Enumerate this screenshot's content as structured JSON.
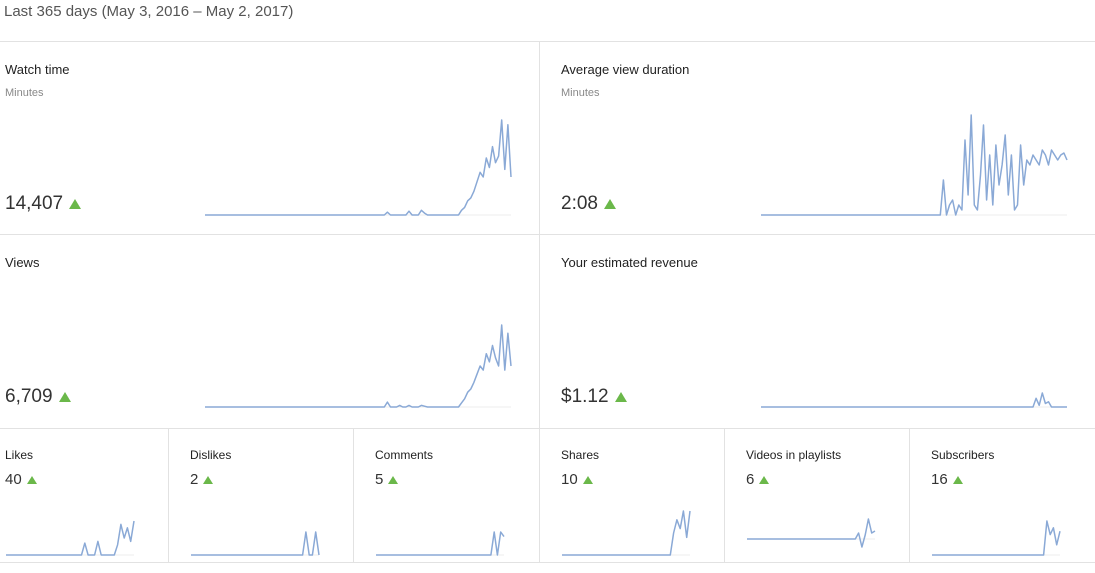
{
  "period_label": "Last 365 days (May 3, 2016 – May 2, 2017)",
  "accent_color": "#6bb84a",
  "line_color": "#8aa9d6",
  "metrics": {
    "watch_time": {
      "title": "Watch time",
      "subtitle": "Minutes",
      "value": "14,407",
      "trend": "up-arrow-icon",
      "chart_data": {
        "type": "line",
        "x_count": 100,
        "values": [
          0,
          0,
          0,
          0,
          0,
          0,
          0,
          0,
          0,
          0,
          0,
          0,
          0,
          0,
          0,
          0,
          0,
          0,
          0,
          0,
          0,
          0,
          0,
          0,
          0,
          0,
          0,
          0,
          0,
          0,
          0,
          0,
          0,
          0,
          0,
          0,
          0,
          0,
          0,
          0,
          0,
          0,
          0,
          0,
          0,
          0,
          0,
          0,
          0,
          0,
          0,
          0,
          0,
          0,
          0,
          0,
          0,
          0,
          0,
          0.03,
          0,
          0,
          0,
          0,
          0,
          0,
          0.04,
          0,
          0,
          0,
          0.05,
          0.02,
          0,
          0,
          0,
          0,
          0,
          0,
          0,
          0,
          0,
          0,
          0,
          0.05,
          0.08,
          0.15,
          0.18,
          0.25,
          0.35,
          0.45,
          0.4,
          0.6,
          0.5,
          0.72,
          0.55,
          0.62,
          1.0,
          0.48,
          0.95,
          0.4
        ]
      }
    },
    "avg_view_duration": {
      "title": "Average view duration",
      "subtitle": "Minutes",
      "value": "2:08",
      "trend": "up-arrow-icon",
      "chart_data": {
        "type": "line",
        "x_count": 100,
        "values": [
          0,
          0,
          0,
          0,
          0,
          0,
          0,
          0,
          0,
          0,
          0,
          0,
          0,
          0,
          0,
          0,
          0,
          0,
          0,
          0,
          0,
          0,
          0,
          0,
          0,
          0,
          0,
          0,
          0,
          0,
          0,
          0,
          0,
          0,
          0,
          0,
          0,
          0,
          0,
          0,
          0,
          0,
          0,
          0,
          0,
          0,
          0,
          0,
          0,
          0,
          0,
          0,
          0,
          0,
          0,
          0,
          0,
          0,
          0,
          0.35,
          0,
          0.1,
          0.15,
          0,
          0.1,
          0.05,
          0.75,
          0.2,
          1.0,
          0.1,
          0.05,
          0.4,
          0.9,
          0.15,
          0.6,
          0.1,
          0.7,
          0.3,
          0.5,
          0.8,
          0.2,
          0.6,
          0.05,
          0.1,
          0.7,
          0.3,
          0.55,
          0.5,
          0.6,
          0.55,
          0.5,
          0.65,
          0.6,
          0.5,
          0.65,
          0.6,
          0.55,
          0.6,
          0.62,
          0.55
        ]
      }
    },
    "views": {
      "title": "Views",
      "value": "6,709",
      "trend": "up-arrow-icon",
      "chart_data": {
        "type": "line",
        "x_count": 100,
        "values": [
          0,
          0,
          0,
          0,
          0,
          0,
          0,
          0,
          0,
          0,
          0,
          0,
          0,
          0,
          0,
          0,
          0,
          0,
          0,
          0,
          0,
          0,
          0,
          0,
          0,
          0,
          0,
          0,
          0,
          0,
          0,
          0,
          0,
          0,
          0,
          0,
          0,
          0,
          0,
          0,
          0,
          0,
          0,
          0,
          0,
          0,
          0,
          0,
          0,
          0,
          0,
          0,
          0,
          0,
          0,
          0,
          0,
          0,
          0,
          0.06,
          0,
          0,
          0,
          0.02,
          0,
          0,
          0.02,
          0,
          0,
          0,
          0.02,
          0.01,
          0,
          0,
          0,
          0,
          0,
          0,
          0,
          0,
          0,
          0,
          0,
          0.05,
          0.1,
          0.18,
          0.22,
          0.3,
          0.4,
          0.5,
          0.45,
          0.65,
          0.55,
          0.75,
          0.6,
          0.5,
          1.0,
          0.45,
          0.9,
          0.5
        ]
      }
    },
    "revenue": {
      "title": "Your estimated revenue",
      "value": "$1.12",
      "trend": "up-arrow-icon",
      "chart_data": {
        "type": "line",
        "x_count": 100,
        "values": [
          0,
          0,
          0,
          0,
          0,
          0,
          0,
          0,
          0,
          0,
          0,
          0,
          0,
          0,
          0,
          0,
          0,
          0,
          0,
          0,
          0,
          0,
          0,
          0,
          0,
          0,
          0,
          0,
          0,
          0,
          0,
          0,
          0,
          0,
          0,
          0,
          0,
          0,
          0,
          0,
          0,
          0,
          0,
          0,
          0,
          0,
          0,
          0,
          0,
          0,
          0,
          0,
          0,
          0,
          0,
          0,
          0,
          0,
          0,
          0,
          0,
          0,
          0,
          0,
          0,
          0,
          0,
          0,
          0,
          0,
          0,
          0,
          0,
          0,
          0,
          0,
          0,
          0,
          0,
          0,
          0,
          0,
          0,
          0,
          0,
          0,
          0,
          0,
          0,
          0.5,
          0.1,
          0.8,
          0.2,
          0.3,
          0,
          0,
          0,
          0,
          0,
          0
        ]
      }
    },
    "likes": {
      "title": "Likes",
      "value": "40",
      "trend": "up-arrow-icon",
      "chart_data": {
        "type": "line",
        "x_count": 40,
        "values": [
          0,
          0,
          0,
          0,
          0,
          0,
          0,
          0,
          0,
          0,
          0,
          0,
          0,
          0,
          0,
          0,
          0,
          0,
          0,
          0,
          0,
          0,
          0,
          0,
          0.35,
          0,
          0,
          0,
          0.4,
          0,
          0,
          0,
          0,
          0,
          0.3,
          0.9,
          0.5,
          0.8,
          0.4,
          1.0
        ]
      }
    },
    "dislikes": {
      "title": "Dislikes",
      "value": "2",
      "trend": "up-arrow-icon",
      "chart_data": {
        "type": "line",
        "x_count": 40,
        "values": [
          0,
          0,
          0,
          0,
          0,
          0,
          0,
          0,
          0,
          0,
          0,
          0,
          0,
          0,
          0,
          0,
          0,
          0,
          0,
          0,
          0,
          0,
          0,
          0,
          0,
          0,
          0,
          0,
          0,
          0,
          0,
          0,
          0,
          0,
          0,
          1,
          0,
          0,
          1,
          0
        ]
      }
    },
    "comments": {
      "title": "Comments",
      "value": "5",
      "trend": "up-arrow-icon",
      "chart_data": {
        "type": "line",
        "x_count": 40,
        "values": [
          0,
          0,
          0,
          0,
          0,
          0,
          0,
          0,
          0,
          0,
          0,
          0,
          0,
          0,
          0,
          0,
          0,
          0,
          0,
          0,
          0,
          0,
          0,
          0,
          0,
          0,
          0,
          0,
          0,
          0,
          0,
          0,
          0,
          0,
          0,
          0,
          1,
          0,
          1,
          0.8
        ]
      }
    },
    "shares": {
      "title": "Shares",
      "value": "10",
      "trend": "up-arrow-icon",
      "chart_data": {
        "type": "line",
        "x_count": 40,
        "values": [
          0,
          0,
          0,
          0,
          0,
          0,
          0,
          0,
          0,
          0,
          0,
          0,
          0,
          0,
          0,
          0,
          0,
          0,
          0,
          0,
          0,
          0,
          0,
          0,
          0,
          0,
          0,
          0,
          0,
          0,
          0,
          0,
          0,
          0,
          0.5,
          0.8,
          0.6,
          1.0,
          0.4,
          1.0
        ]
      }
    },
    "videos_in_playlists": {
      "title": "Videos in playlists",
      "value": "6",
      "trend": "up-arrow-icon",
      "chart_data": {
        "type": "line",
        "x_count": 40,
        "values": [
          0,
          0,
          0,
          0,
          0,
          0,
          0,
          0,
          0,
          0,
          0,
          0,
          0,
          0,
          0,
          0,
          0,
          0,
          0,
          0,
          0,
          0,
          0,
          0,
          0,
          0,
          0,
          0,
          0,
          0,
          0,
          0,
          0,
          0,
          0.3,
          -0.4,
          0.2,
          1.0,
          0.3,
          0.4
        ]
      }
    },
    "subscribers": {
      "title": "Subscribers",
      "value": "16",
      "trend": "up-arrow-icon",
      "chart_data": {
        "type": "line",
        "x_count": 40,
        "values": [
          0,
          0,
          0,
          0,
          0,
          0,
          0,
          0,
          0,
          0,
          0,
          0,
          0,
          0,
          0,
          0,
          0,
          0,
          0,
          0,
          0,
          0,
          0,
          0,
          0,
          0,
          0,
          0,
          0,
          0,
          0,
          0,
          0,
          0,
          0,
          1.0,
          0.6,
          0.8,
          0.3,
          0.7
        ]
      }
    }
  }
}
